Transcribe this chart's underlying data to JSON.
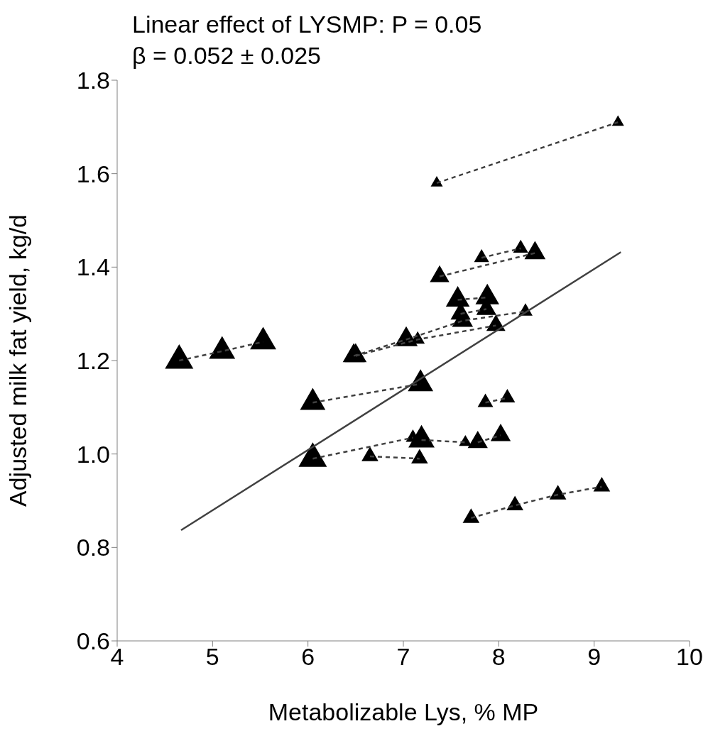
{
  "chart_data": {
    "type": "bubble",
    "title": "Linear effect of LYSMP: P = 0.05",
    "subtitle": "β = 0.052 ± 0.025",
    "xlabel": "Metabolizable Lys, % MP",
    "ylabel": "Adjusted milk fat yield, kg/d",
    "xlim": [
      4,
      10
    ],
    "xticks": [
      4,
      5,
      6,
      7,
      8,
      9,
      10
    ],
    "ylim": [
      0.6,
      1.8
    ],
    "yticks": [
      0.6,
      0.8,
      {
        "value": 1,
        "label": "1.0"
      },
      1.2,
      1.4,
      1.6,
      1.8
    ],
    "grid": false,
    "legend": false,
    "marker": "triangle",
    "series": [
      {
        "color": "#000000",
        "x": [
          4.65,
          5.1,
          5.53,
          7.35,
          9.25,
          7.82,
          8.23,
          7.38,
          8.38,
          7.57,
          7.88,
          7.6,
          7.87,
          6.48,
          7.03,
          7.62,
          8.28,
          6.5,
          7.15,
          7.97,
          6.05,
          7.18,
          7.86,
          8.09,
          6.05,
          7.1,
          7.19,
          7.65,
          7.78,
          8.02,
          6.65,
          7.17,
          7.71,
          8.17,
          8.62,
          9.08
        ],
        "values": [
          1.2,
          1.22,
          1.24,
          1.58,
          1.71,
          1.42,
          1.44,
          1.38,
          1.43,
          1.33,
          1.335,
          1.3,
          1.31,
          1.21,
          1.245,
          1.285,
          1.305,
          1.21,
          1.245,
          1.275,
          1.11,
          1.15,
          1.11,
          1.12,
          0.99,
          1.035,
          1.03,
          1.025,
          1.025,
          1.04,
          0.995,
          0.99,
          0.863,
          0.89,
          0.913,
          0.93
        ],
        "sizes": [
          1,
          0.85,
          0.85,
          0.18,
          0.18,
          0.28,
          0.28,
          0.47,
          0.55,
          0.7,
          0.7,
          0.5,
          0.5,
          0.6,
          0.65,
          0.55,
          0.25,
          0.6,
          0.25,
          0.45,
          0.8,
          0.8,
          0.3,
          0.3,
          1,
          0.25,
          0.85,
          0.2,
          0.5,
          0.5,
          0.35,
          0.35,
          0.35,
          0.35,
          0.35,
          0.35
        ]
      },
      {
        "type": "line",
        "color": "#404040",
        "line_style": "dashed",
        "marker": "none",
        "x": [
          4.65,
          5.1,
          5.53
        ],
        "values": [
          1.2,
          1.22,
          1.24
        ]
      },
      {
        "type": "line",
        "color": "#404040",
        "line_style": "dashed",
        "marker": "none",
        "x": [
          7.35,
          9.25
        ],
        "values": [
          1.58,
          1.71
        ]
      },
      {
        "type": "line",
        "color": "#404040",
        "line_style": "dashed",
        "marker": "none",
        "x": [
          7.82,
          8.23
        ],
        "values": [
          1.42,
          1.44
        ]
      },
      {
        "type": "line",
        "color": "#404040",
        "line_style": "dashed",
        "marker": "none",
        "x": [
          7.38,
          8.38
        ],
        "values": [
          1.38,
          1.43
        ]
      },
      {
        "type": "line",
        "color": "#404040",
        "line_style": "dashed",
        "marker": "none",
        "x": [
          7.57,
          7.88
        ],
        "values": [
          1.33,
          1.335
        ]
      },
      {
        "type": "line",
        "color": "#404040",
        "line_style": "dashed",
        "marker": "none",
        "x": [
          7.6,
          7.87
        ],
        "values": [
          1.3,
          1.31
        ]
      },
      {
        "type": "line",
        "color": "#404040",
        "line_style": "dashed",
        "marker": "none",
        "x": [
          6.48,
          7.03,
          7.62,
          8.28
        ],
        "values": [
          1.21,
          1.245,
          1.285,
          1.305
        ]
      },
      {
        "type": "line",
        "color": "#404040",
        "line_style": "dashed",
        "marker": "none",
        "x": [
          6.5,
          7.15,
          7.97
        ],
        "values": [
          1.21,
          1.245,
          1.275
        ]
      },
      {
        "type": "line",
        "color": "#404040",
        "line_style": "dashed",
        "marker": "none",
        "x": [
          6.05,
          7.18
        ],
        "values": [
          1.11,
          1.15
        ]
      },
      {
        "type": "line",
        "color": "#404040",
        "line_style": "dashed",
        "marker": "none",
        "x": [
          7.86,
          8.09
        ],
        "values": [
          1.11,
          1.12
        ]
      },
      {
        "type": "line",
        "color": "#404040",
        "line_style": "dashed",
        "marker": "none",
        "x": [
          6.05,
          7.1
        ],
        "values": [
          0.99,
          1.035
        ]
      },
      {
        "type": "line",
        "color": "#404040",
        "line_style": "dashed",
        "marker": "none",
        "x": [
          7.19,
          7.65
        ],
        "values": [
          1.03,
          1.025
        ]
      },
      {
        "type": "line",
        "color": "#404040",
        "line_style": "dashed",
        "marker": "none",
        "x": [
          7.78,
          8.02
        ],
        "values": [
          1.025,
          1.04
        ]
      },
      {
        "type": "line",
        "color": "#404040",
        "line_style": "dashed",
        "marker": "none",
        "x": [
          6.65,
          7.17
        ],
        "values": [
          0.995,
          0.99
        ]
      },
      {
        "type": "line",
        "color": "#404040",
        "line_style": "dashed",
        "marker": "none",
        "x": [
          7.71,
          8.17,
          8.62,
          9.08
        ],
        "values": [
          0.863,
          0.89,
          0.913,
          0.93
        ]
      },
      {
        "type": "line",
        "color": "#404040",
        "line_style": "solid",
        "marker": "none",
        "x": [
          4.67,
          9.28
        ],
        "values": [
          0.837,
          1.432
        ]
      }
    ]
  }
}
